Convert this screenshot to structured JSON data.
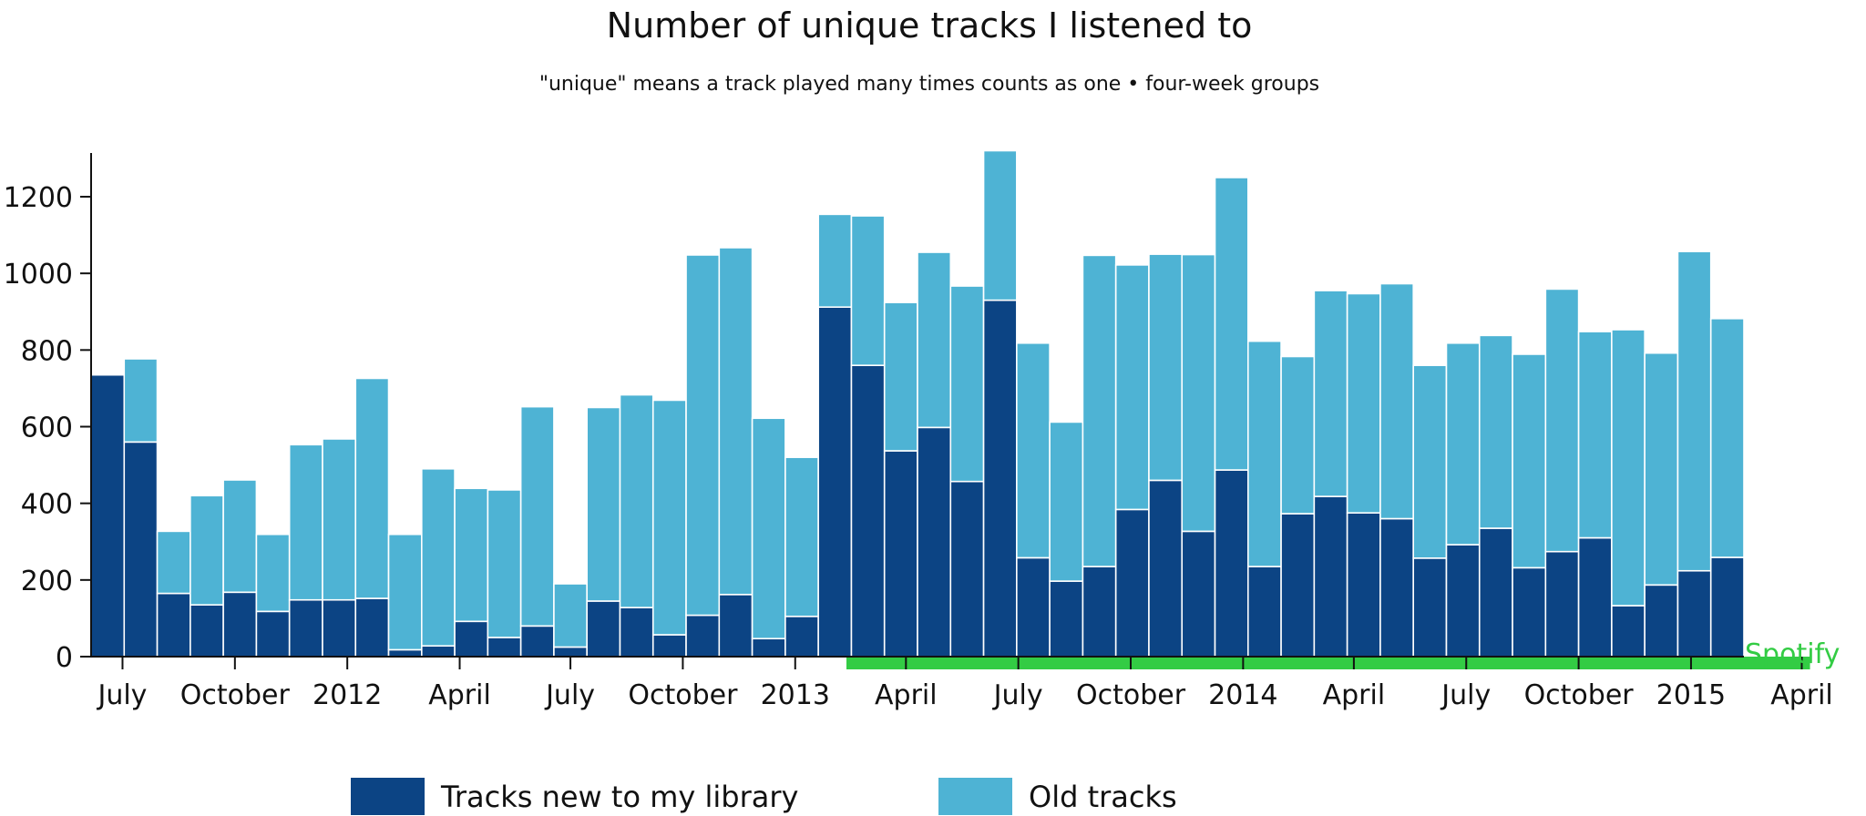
{
  "colors": {
    "new_tracks": "#0c4484",
    "old_tracks": "#4eb3d4",
    "bar_stroke": "#ffffff",
    "axis": "#111111",
    "spotify": "#33cc44"
  },
  "chart_data": {
    "type": "bar",
    "stacked": true,
    "title": "Number of unique tracks I listened to",
    "subtitle": "\"unique\" means a track played many times counts as one • four-week groups",
    "xlabel": "",
    "ylabel": "",
    "ylim": [
      0,
      1320
    ],
    "yticks": [
      0,
      200,
      400,
      600,
      800,
      1000,
      1200
    ],
    "grid": false,
    "legend_placement": "bottom-center",
    "series": [
      {
        "name": "Tracks new to my library",
        "values": [
          735,
          560,
          165,
          135,
          168,
          118,
          148,
          148,
          152,
          18,
          28,
          92,
          50,
          80,
          25,
          145,
          128,
          57,
          108,
          162,
          47,
          105,
          912,
          760,
          537,
          598,
          457,
          930,
          258,
          197,
          235,
          384,
          460,
          327,
          487,
          235,
          373,
          418,
          375,
          360,
          257,
          292,
          335,
          232,
          274,
          310,
          133,
          187,
          224,
          259
        ]
      },
      {
        "name": "Old tracks",
        "values": [
          0,
          217,
          162,
          285,
          293,
          201,
          405,
          420,
          574,
          301,
          462,
          347,
          385,
          572,
          165,
          505,
          555,
          612,
          940,
          905,
          575,
          415,
          242,
          390,
          387,
          457,
          510,
          390,
          560,
          415,
          812,
          638,
          590,
          722,
          763,
          588,
          410,
          537,
          572,
          613,
          503,
          526,
          503,
          557,
          685,
          538,
          720,
          605,
          833,
          623
        ]
      }
    ],
    "x_axis_ticks": [
      {
        "label": "July",
        "position": 0.95
      },
      {
        "label": "October",
        "position": 4.35
      },
      {
        "label": "2012",
        "position": 7.75
      },
      {
        "label": "April",
        "position": 11.15
      },
      {
        "label": "July",
        "position": 14.5
      },
      {
        "label": "October",
        "position": 17.9
      },
      {
        "label": "2013",
        "position": 21.3
      },
      {
        "label": "April",
        "position": 24.65
      },
      {
        "label": "July",
        "position": 28.05
      },
      {
        "label": "October",
        "position": 31.45
      },
      {
        "label": "2014",
        "position": 34.85
      },
      {
        "label": "April",
        "position": 38.2
      },
      {
        "label": "July",
        "position": 41.6
      },
      {
        "label": "October",
        "position": 45.0
      },
      {
        "label": "2015",
        "position": 48.4
      },
      {
        "label": "April",
        "position": 51.75
      }
    ],
    "spotify_range": [
      22.85,
      52.0
    ],
    "annotations": [
      {
        "text": "Spotify"
      }
    ]
  },
  "legend": {
    "items": [
      {
        "label": "Tracks new to my library"
      },
      {
        "label": "Old tracks"
      }
    ]
  }
}
